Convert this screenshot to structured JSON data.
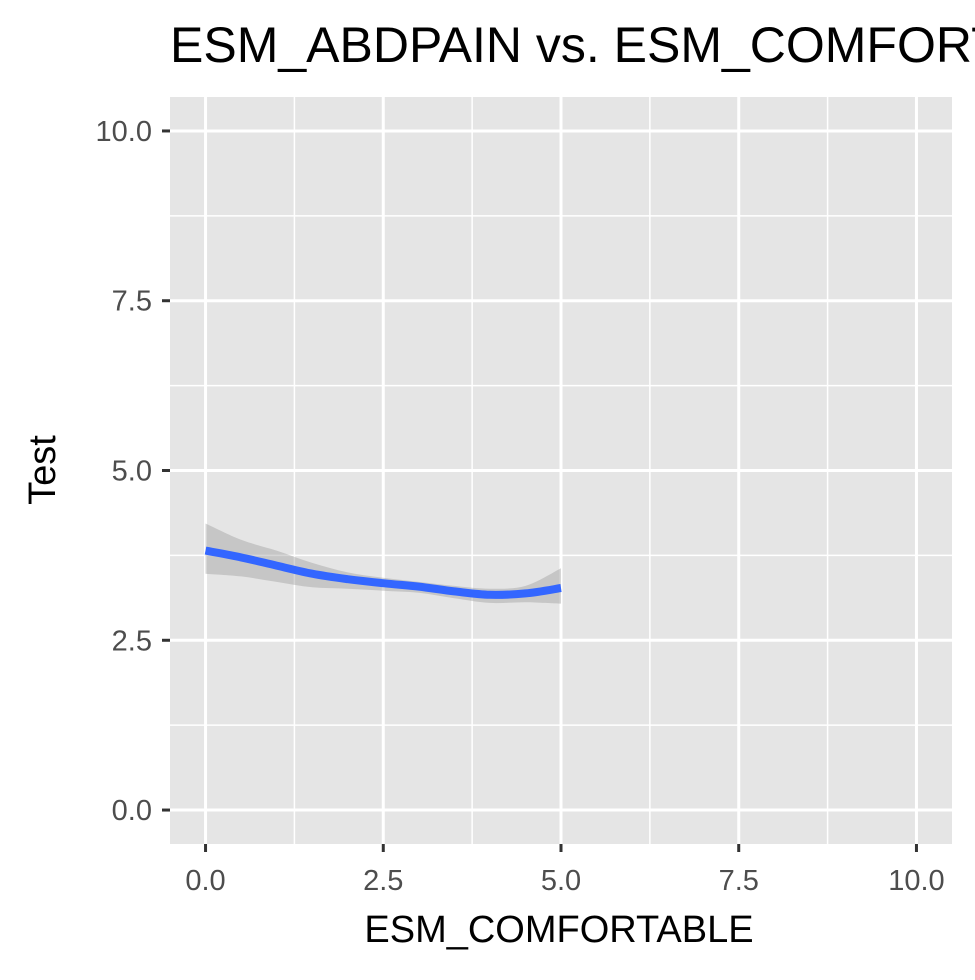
{
  "chart_data": {
    "type": "line",
    "title": "ESM_ABDPAIN vs. ESM_COMFORTABLE",
    "xlabel": "ESM_COMFORTABLE",
    "ylabel": "Test",
    "xlim": [
      -0.5,
      10.5
    ],
    "ylim": [
      -0.5,
      10.5
    ],
    "x_ticks": [
      "0.0",
      "2.5",
      "5.0",
      "7.5",
      "10.0"
    ],
    "y_ticks": [
      "0.0",
      "2.5",
      "5.0",
      "7.5",
      "10.0"
    ],
    "grid": true,
    "legend": "none",
    "series": [
      {
        "x": [
          0,
          0.5,
          1,
          1.5,
          2,
          2.5,
          3,
          3.5,
          4,
          4.5,
          5
        ],
        "y": [
          3.82,
          3.72,
          3.6,
          3.48,
          3.4,
          3.34,
          3.29,
          3.22,
          3.17,
          3.19,
          3.27
        ],
        "ci_upper": [
          4.22,
          3.98,
          3.82,
          3.64,
          3.5,
          3.42,
          3.36,
          3.3,
          3.26,
          3.3,
          3.56
        ],
        "ci_lower": [
          3.48,
          3.44,
          3.36,
          3.28,
          3.26,
          3.23,
          3.2,
          3.12,
          3.05,
          3.06,
          3.04
        ]
      }
    ],
    "colors": {
      "line": "#3366ff",
      "ribbon": "#999999",
      "panel": "#e5e5e5",
      "grid": "#ffffff",
      "tick_text": "#4d4d4d",
      "tick_mark": "#333333"
    }
  }
}
